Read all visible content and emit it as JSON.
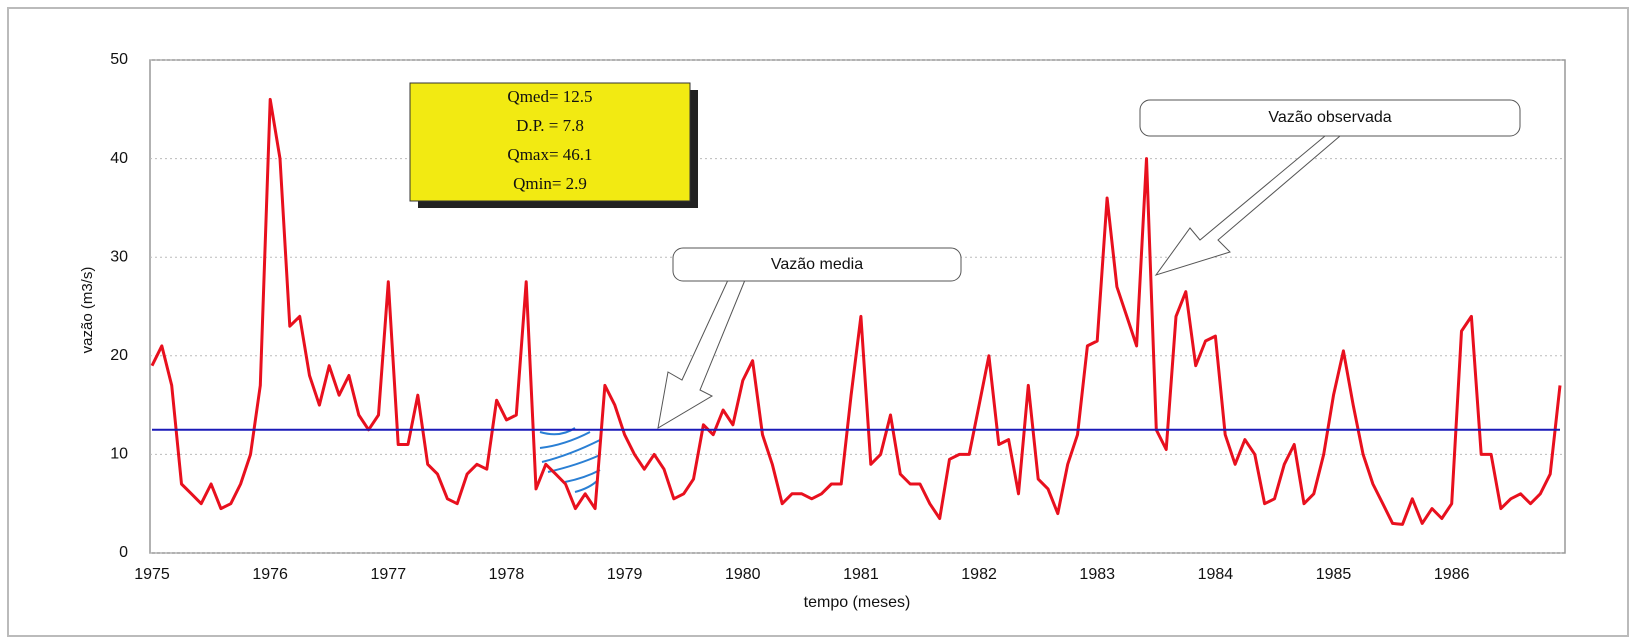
{
  "chart_data": {
    "type": "line",
    "y_label": "vazão (m3/s)",
    "x_label": "tempo (meses)",
    "categories": [
      "1975",
      null,
      null,
      null,
      null,
      null,
      null,
      null,
      null,
      null,
      null,
      null,
      "1976",
      null,
      null,
      null,
      null,
      null,
      null,
      null,
      null,
      null,
      null,
      null,
      "1977",
      null,
      null,
      null,
      null,
      null,
      null,
      null,
      null,
      null,
      null,
      null,
      "1978",
      null,
      null,
      null,
      null,
      null,
      null,
      null,
      null,
      null,
      null,
      null,
      "1979",
      null,
      null,
      null,
      null,
      null,
      null,
      null,
      null,
      null,
      null,
      null,
      "1980",
      null,
      null,
      null,
      null,
      null,
      null,
      null,
      null,
      null,
      null,
      null,
      "1981",
      null,
      null,
      null,
      null,
      null,
      null,
      null,
      null,
      null,
      null,
      null,
      "1982",
      null,
      null,
      null,
      null,
      null,
      null,
      null,
      null,
      null,
      null,
      null,
      "1983",
      null,
      null,
      null,
      null,
      null,
      null,
      null,
      null,
      null,
      null,
      null,
      "1984",
      null,
      null,
      null,
      null,
      null,
      null,
      null,
      null,
      null,
      null,
      null,
      "1985",
      null,
      null,
      null,
      null,
      null,
      null,
      null,
      null,
      null,
      null,
      null,
      "1986",
      null,
      null,
      null,
      null,
      null,
      null,
      null,
      null,
      null,
      null,
      null
    ],
    "series": [
      {
        "name": "Vazão observada",
        "color": "#e8101e",
        "values": [
          19,
          21,
          17,
          7,
          6,
          5,
          7,
          4.5,
          5,
          7,
          10,
          17,
          46,
          40,
          23,
          24,
          18,
          15,
          19,
          16,
          18,
          14,
          12.5,
          14,
          27.5,
          11,
          11,
          16,
          9,
          8,
          5.5,
          5,
          8,
          9,
          8.5,
          15.5,
          13.5,
          14,
          27.5,
          6.5,
          9,
          8,
          7,
          4.5,
          6,
          4.5,
          17,
          15,
          12,
          10,
          8.5,
          10,
          8.5,
          5.5,
          6,
          7.5,
          13,
          12,
          14.5,
          13,
          17.5,
          19.5,
          12,
          9,
          5,
          6,
          6,
          5.5,
          6,
          7,
          7,
          16,
          24,
          9,
          10,
          14,
          8,
          7,
          7,
          5,
          3.5,
          9.5,
          10,
          10,
          15,
          20,
          11,
          11.5,
          6,
          17,
          7.5,
          6.5,
          4,
          9,
          12,
          21,
          21.5,
          36,
          27,
          24,
          21,
          40,
          12.5,
          10.5,
          24,
          26.5,
          19,
          21.5,
          22,
          12,
          9,
          11.5,
          10,
          5,
          5.5,
          9,
          11,
          5,
          6,
          10,
          16,
          20.5,
          15,
          10,
          7,
          5,
          3,
          2.9,
          5.5,
          3,
          4.5,
          3.5,
          5,
          22.5,
          24,
          10,
          10,
          4.5,
          5.5,
          6,
          5,
          6,
          8,
          17
        ]
      }
    ],
    "reference_line": {
      "name": "Vazão media",
      "value": 12.5,
      "color": "#1a1ab8"
    },
    "stats_box": [
      "Qmed= 12.5",
      "D.P. =   7.8",
      "Qmax= 46.1",
      "Qmin=    2.9"
    ],
    "ylim": [
      0,
      50
    ],
    "yticks": [
      0,
      10,
      20,
      30,
      40,
      50
    ],
    "grid": true
  }
}
